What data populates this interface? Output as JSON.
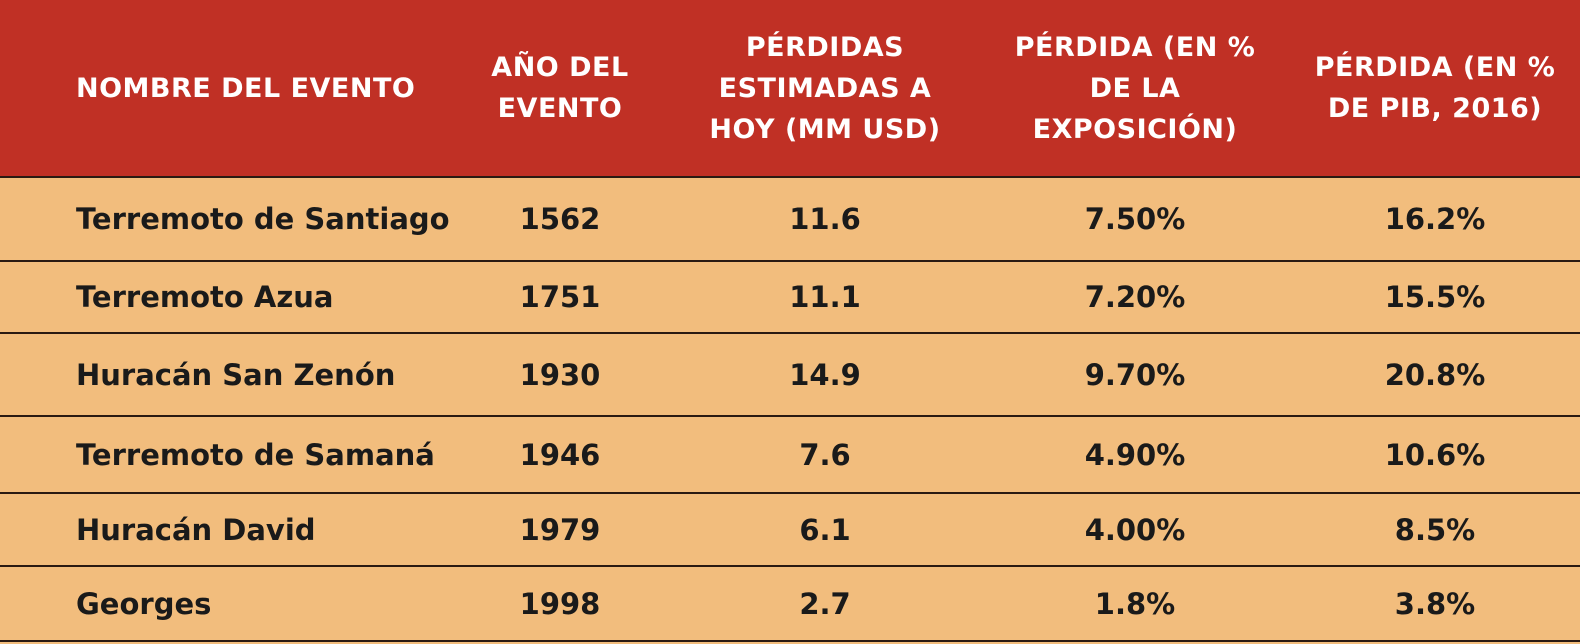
{
  "table": {
    "headers": [
      "NOMBRE DEL EVENTO",
      "AÑO DEL EVENTO",
      "PÉRDIDAS ESTIMADAS A HOY (MM USD)",
      "PÉRDIDA (EN % DE LA EXPOSICIÓN)",
      "PÉRDIDA (EN % DE PIB, 2016)"
    ],
    "rows": [
      [
        "Terremoto de Santiago",
        "1562",
        "11.6",
        "7.50%",
        "16.2%"
      ],
      [
        "Terremoto Azua",
        "1751",
        "11.1",
        "7.20%",
        "15.5%"
      ],
      [
        "Huracán San Zenón",
        "1930",
        "14.9",
        "9.70%",
        "20.8%"
      ],
      [
        "Terremoto de Samaná",
        "1946",
        "7.6",
        "4.90%",
        "10.6%"
      ],
      [
        "Huracán David",
        "1979",
        "6.1",
        "4.00%",
        "8.5%"
      ],
      [
        "Georges",
        "1998",
        "2.7",
        "1.8%",
        "3.8%"
      ]
    ]
  },
  "colors": {
    "header_bg": "#c03025",
    "header_text": "#ffffff",
    "body_bg": "#f2bd7d",
    "body_text": "#1a1a1a",
    "row_rule": "#2a1a12"
  }
}
